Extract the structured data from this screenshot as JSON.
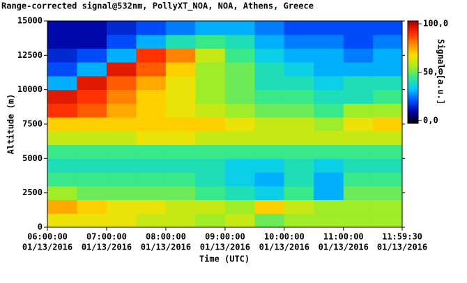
{
  "chart_data": {
    "type": "heatmap",
    "title": "Range-corrected signal@532nm, PollyXT_NOA, NOA, Athens, Greece",
    "xlabel": "Time (UTC)",
    "ylabel": "Altitude (m)",
    "colorbar_label": "Signal [a.u.]",
    "xlim": [
      6,
      11.991667
    ],
    "ylim": [
      0,
      15000
    ],
    "clim": [
      -3,
      103
    ],
    "colormap": [
      "#000000",
      "#0000a0",
      "#0050ff",
      "#00c8ff",
      "#30e890",
      "#a8ec20",
      "#ffe000",
      "#ff8800",
      "#ff2800",
      "#a00000"
    ],
    "xticks": [
      {
        "value": 6,
        "label": "06:00:00",
        "date": "01/13/2016"
      },
      {
        "value": 7,
        "label": "07:00:00",
        "date": "01/13/2016"
      },
      {
        "value": 8,
        "label": "08:00:00",
        "date": "01/13/2016"
      },
      {
        "value": 9,
        "label": "09:00:00",
        "date": "01/13/2016"
      },
      {
        "value": 10,
        "label": "10:00:00",
        "date": "01/13/2016"
      },
      {
        "value": 11,
        "label": "11:00:00",
        "date": "01/13/2016"
      },
      {
        "value": 11.991667,
        "label": "11:59:30",
        "date": "01/13/2016"
      }
    ],
    "yticks": [
      0,
      2500,
      5000,
      7500,
      10000,
      12500,
      15000
    ],
    "cticks": [
      {
        "value": 0,
        "label": "0,0"
      },
      {
        "value": 50,
        "label": "50,0"
      },
      {
        "value": 100,
        "label": "100,0"
      }
    ],
    "x_edges": [
      6,
      6.5,
      7,
      7.5,
      8,
      8.5,
      9,
      9.5,
      10,
      10.5,
      11,
      11.5,
      11.991667
    ],
    "y_edges": [
      0,
      1000,
      2000,
      3000,
      4000,
      5000,
      6000,
      7000,
      8000,
      9000,
      10000,
      11000,
      12000,
      13000,
      14000,
      15000
    ],
    "z": [
      [
        65,
        65,
        65,
        60,
        60,
        55,
        60,
        50,
        55,
        55,
        55,
        55
      ],
      [
        75,
        70,
        65,
        65,
        60,
        60,
        55,
        70,
        60,
        55,
        55,
        55
      ],
      [
        55,
        50,
        50,
        50,
        50,
        45,
        40,
        35,
        45,
        30,
        50,
        50
      ],
      [
        45,
        45,
        45,
        45,
        45,
        40,
        35,
        30,
        40,
        30,
        45,
        45
      ],
      [
        40,
        40,
        40,
        40,
        40,
        40,
        35,
        35,
        40,
        35,
        40,
        40
      ],
      [
        45,
        45,
        45,
        45,
        45,
        45,
        45,
        45,
        45,
        45,
        45,
        45
      ],
      [
        60,
        60,
        60,
        65,
        65,
        60,
        60,
        60,
        60,
        60,
        60,
        60
      ],
      [
        70,
        70,
        70,
        70,
        70,
        70,
        65,
        60,
        60,
        55,
        65,
        70
      ],
      [
        90,
        85,
        75,
        70,
        65,
        60,
        55,
        50,
        50,
        45,
        55,
        55
      ],
      [
        95,
        90,
        80,
        70,
        65,
        55,
        50,
        45,
        45,
        40,
        40,
        45
      ],
      [
        30,
        95,
        85,
        75,
        65,
        55,
        50,
        40,
        40,
        35,
        40,
        40
      ],
      [
        20,
        30,
        95,
        85,
        70,
        55,
        50,
        40,
        35,
        30,
        30,
        30
      ],
      [
        15,
        20,
        30,
        90,
        80,
        60,
        45,
        35,
        30,
        30,
        25,
        30
      ],
      [
        10,
        10,
        20,
        30,
        40,
        45,
        40,
        30,
        25,
        25,
        20,
        25
      ],
      [
        10,
        10,
        15,
        20,
        25,
        30,
        30,
        25,
        20,
        20,
        20,
        20
      ]
    ]
  }
}
